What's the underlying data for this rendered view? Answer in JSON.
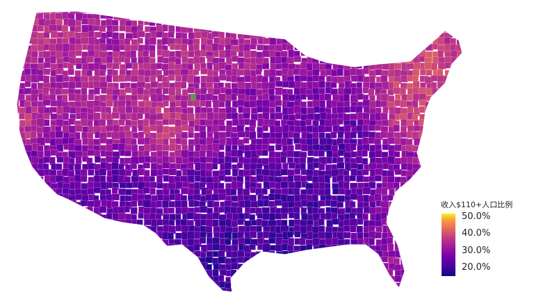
{
  "map": {
    "region": "United States (contiguous) counties",
    "missing_color": "#6b8e5a",
    "colorscale": [
      {
        "stop": 0.0,
        "color": "#0d0887"
      },
      {
        "stop": 0.15,
        "color": "#46039f"
      },
      {
        "stop": 0.3,
        "color": "#7201a8"
      },
      {
        "stop": 0.45,
        "color": "#9c179e"
      },
      {
        "stop": 0.6,
        "color": "#bd3786"
      },
      {
        "stop": 0.7,
        "color": "#d8576b"
      },
      {
        "stop": 0.8,
        "color": "#ed7953"
      },
      {
        "stop": 0.9,
        "color": "#fb9f3a"
      },
      {
        "stop": 1.0,
        "color": "#f0f921"
      }
    ],
    "value_range": [
      0.15,
      0.52
    ]
  },
  "legend": {
    "title": "收入$110+人口比例",
    "ticks": [
      {
        "value": 0.5,
        "label": "50.0%"
      },
      {
        "value": 0.4,
        "label": "40.0%"
      },
      {
        "value": 0.3,
        "label": "30.0%"
      },
      {
        "value": 0.2,
        "label": "20.0%"
      }
    ]
  }
}
